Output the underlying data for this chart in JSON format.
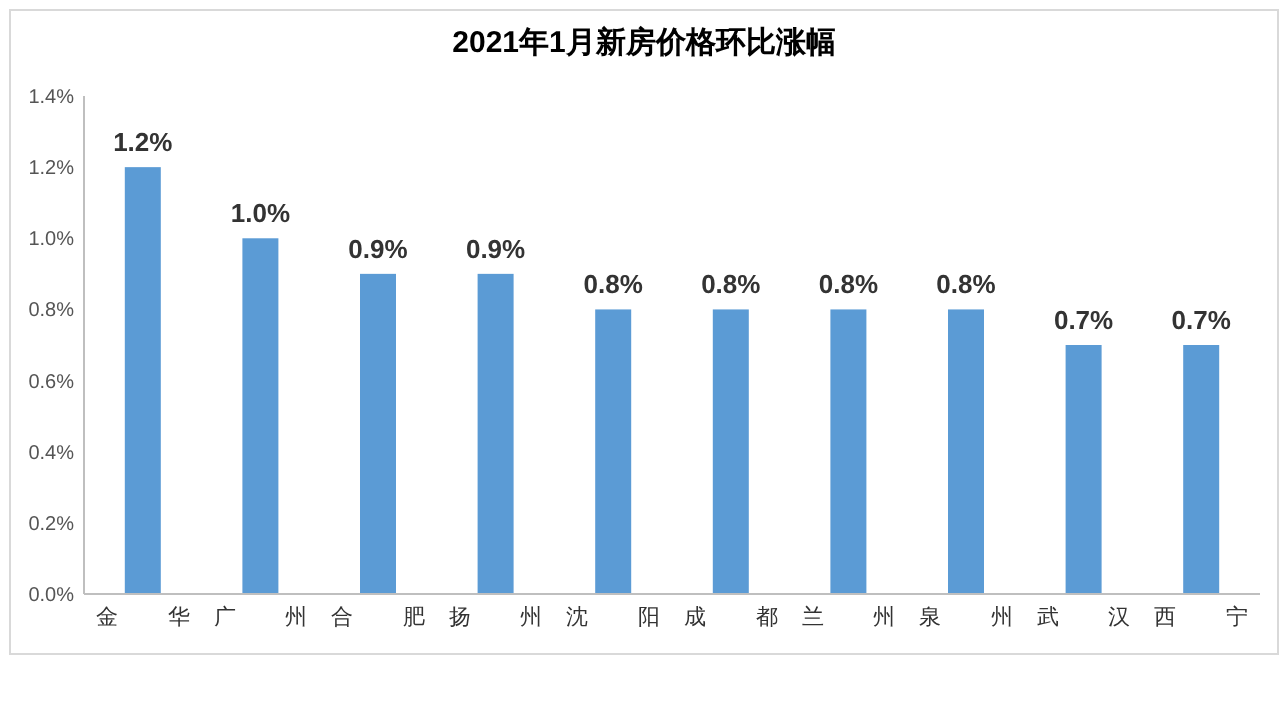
{
  "chart_data": {
    "type": "bar",
    "title": "2021年1月新房价格环比涨幅",
    "categories": [
      "金华",
      "广州",
      "合肥",
      "扬州",
      "沈阳",
      "成都",
      "兰州",
      "泉州",
      "武汉",
      "西宁"
    ],
    "values": [
      1.2,
      1.0,
      0.9,
      0.9,
      0.8,
      0.8,
      0.8,
      0.8,
      0.7,
      0.7
    ],
    "value_labels": [
      "1.2%",
      "1.0%",
      "0.9%",
      "0.9%",
      "0.8%",
      "0.8%",
      "0.8%",
      "0.8%",
      "0.7%",
      "0.7%"
    ],
    "color": "#5b9bd5",
    "ylim": [
      0,
      1.4
    ],
    "yticks": [
      {
        "value": 0,
        "label": "0.0%"
      },
      {
        "value": 0.2,
        "label": "0.2%"
      },
      {
        "value": 0.4,
        "label": "0.4%"
      },
      {
        "value": 0.6,
        "label": "0.6%"
      },
      {
        "value": 0.8,
        "label": "0.8%"
      },
      {
        "value": 1.0,
        "label": "1.0%"
      },
      {
        "value": 1.2,
        "label": "1.2%"
      },
      {
        "value": 1.4,
        "label": "1.4%"
      }
    ],
    "grid": false
  }
}
